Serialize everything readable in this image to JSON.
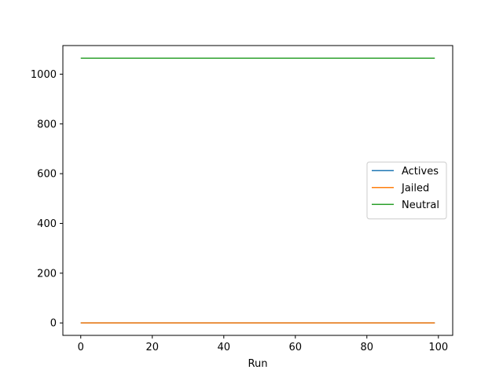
{
  "chart_data": {
    "type": "line",
    "title": "",
    "xlabel": "Run",
    "ylabel": "",
    "xlim": [
      -5,
      104
    ],
    "ylim": [
      -50,
      1115
    ],
    "xticks": [
      0,
      20,
      40,
      60,
      80,
      100
    ],
    "yticks": [
      0,
      200,
      400,
      600,
      800,
      1000
    ],
    "grid": false,
    "legend_position": "center-right",
    "x": [
      0,
      99
    ],
    "series": [
      {
        "name": "Actives",
        "color": "#1f77b4",
        "values": [
          0,
          0
        ]
      },
      {
        "name": "Jailed",
        "color": "#ff7f0e",
        "values": [
          0,
          0
        ]
      },
      {
        "name": "Neutral",
        "color": "#2ca02c",
        "values": [
          1064,
          1064
        ]
      }
    ]
  }
}
